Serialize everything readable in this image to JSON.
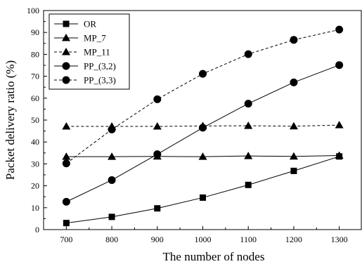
{
  "chart_data": {
    "type": "line",
    "title": "",
    "xlabel": "The number of nodes",
    "ylabel": "Packet delivery ratio (%)",
    "x": [
      700,
      800,
      900,
      1000,
      1100,
      1200,
      1300
    ],
    "xlim": [
      650,
      1350
    ],
    "ylim": [
      0,
      100
    ],
    "xticks": [
      700,
      800,
      900,
      1000,
      1100,
      1200,
      1300
    ],
    "yticks": [
      0,
      10,
      20,
      30,
      40,
      50,
      60,
      70,
      80,
      90,
      100
    ],
    "grid": false,
    "legend_position": "top-left",
    "series": [
      {
        "name": "OR",
        "marker": "square",
        "dash": "solid",
        "values": [
          3,
          5.8,
          9.7,
          14.6,
          20.4,
          26.8,
          33.4
        ]
      },
      {
        "name": "MP_7",
        "marker": "triangle",
        "dash": "solid",
        "values": [
          33.3,
          33.3,
          33.4,
          33.3,
          33.6,
          33.4,
          33.8
        ]
      },
      {
        "name": "MP_11",
        "marker": "triangle",
        "dash": "dashed",
        "values": [
          47.1,
          47.1,
          47.1,
          47.3,
          47.4,
          47.2,
          47.7
        ]
      },
      {
        "name": "PP_(3,2)",
        "marker": "circle",
        "dash": "solid",
        "values": [
          12.7,
          22.6,
          34.4,
          46.5,
          57.5,
          67.2,
          75.1
        ]
      },
      {
        "name": "PP_(3,3)",
        "marker": "circle",
        "dash": "dashed",
        "values": [
          30.2,
          45.7,
          59.5,
          71.1,
          80.1,
          86.6,
          91.3
        ]
      }
    ]
  }
}
